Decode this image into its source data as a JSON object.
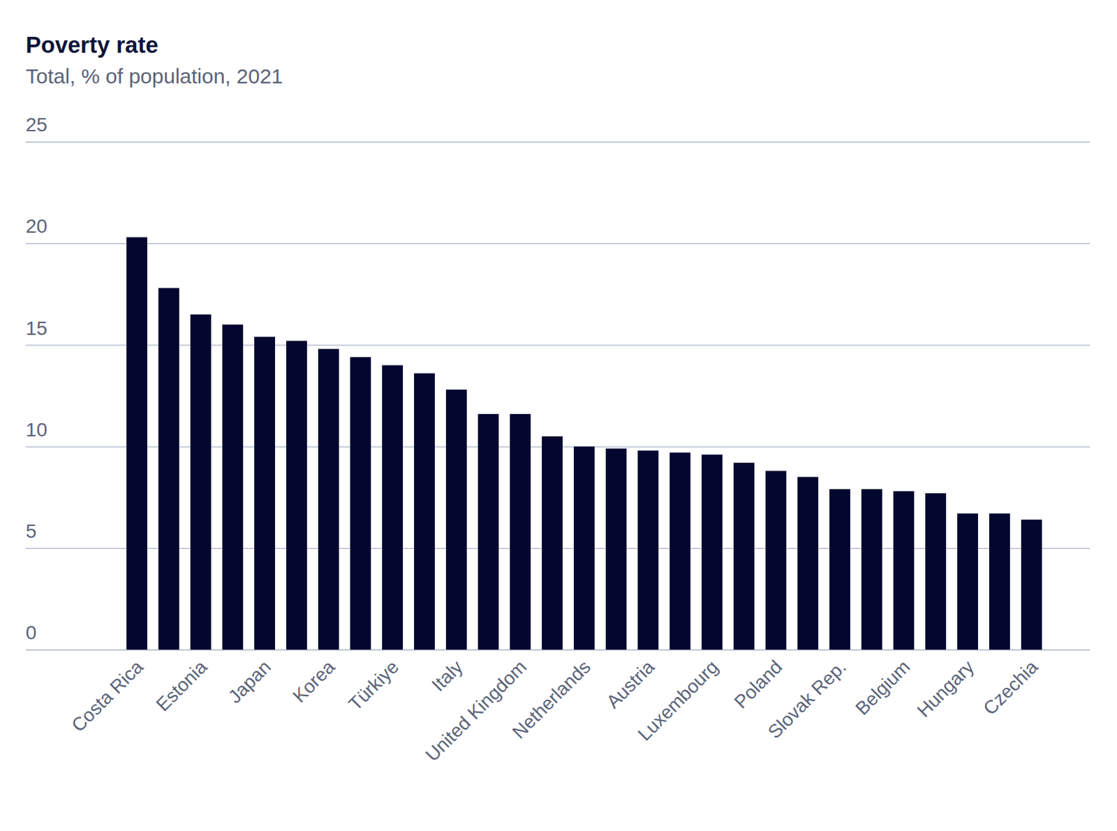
{
  "chart_data": {
    "type": "bar",
    "title": "Poverty rate",
    "subtitle": "Total, % of population, 2021",
    "categories": [
      "Costa Rica",
      null,
      "Estonia",
      null,
      "Japan",
      null,
      "Korea",
      null,
      "Türkiye",
      null,
      "Italy",
      null,
      "United Kingdom",
      null,
      "Netherlands",
      null,
      "Austria",
      null,
      "Luxembourg",
      null,
      "Poland",
      null,
      "Slovak Rep.",
      null,
      "Belgium",
      null,
      "Hungary",
      null,
      "Czechia"
    ],
    "values": [
      20.3,
      17.8,
      16.5,
      16.0,
      15.4,
      15.2,
      14.8,
      14.4,
      14.0,
      13.6,
      12.8,
      11.6,
      11.6,
      10.5,
      10.0,
      9.9,
      9.8,
      9.7,
      9.6,
      9.2,
      8.8,
      8.5,
      7.9,
      7.9,
      7.8,
      7.7,
      6.7,
      6.7,
      6.4
    ],
    "color": "#03062e",
    "ylim": [
      0,
      25
    ],
    "yticks": [
      0,
      5,
      10,
      15,
      20,
      25
    ],
    "grid": true
  }
}
